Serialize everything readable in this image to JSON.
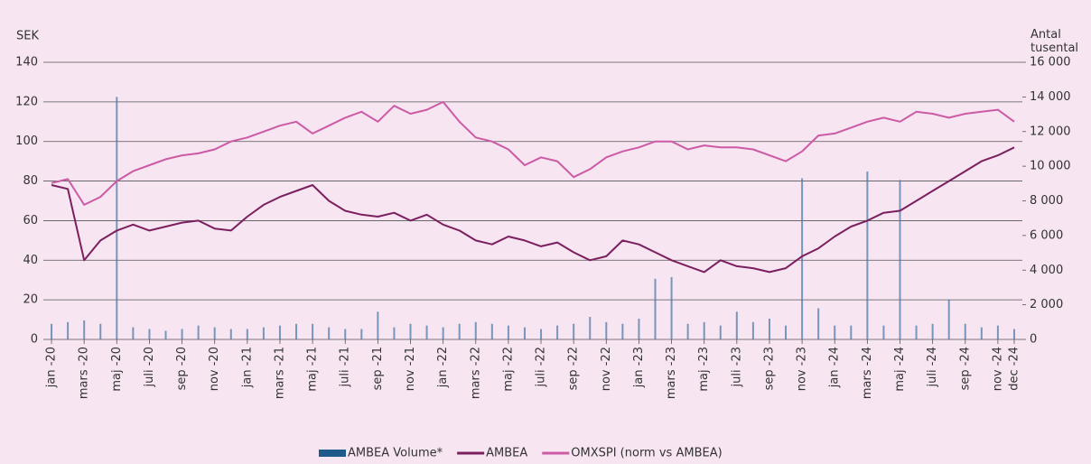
{
  "chart_data": {
    "type": "line",
    "y_label": "SEK",
    "y2_label": "Antal tusental",
    "categories": [
      "jan -20",
      null,
      "mars -20",
      null,
      "maj -20",
      null,
      "juli -20",
      null,
      "sep -20",
      null,
      "nov -20",
      null,
      "jan -21",
      null,
      "mars -21",
      null,
      "maj -21",
      null,
      "juli -21",
      null,
      "sep -21",
      null,
      "nov -21",
      null,
      "jan -22",
      null,
      "mars -22",
      null,
      "maj -22",
      null,
      "juli -22",
      null,
      "sep -22",
      null,
      "nov -22",
      null,
      "jan -23",
      null,
      "mars -23",
      null,
      "maj -23",
      null,
      "juli -23",
      null,
      "sep -23",
      null,
      "nov -23",
      null,
      "jan -24",
      null,
      "mars -24",
      null,
      "maj -24",
      null,
      "juli -24",
      null,
      "sep -24",
      null,
      "nov -24",
      "dec -24"
    ],
    "series": [
      {
        "name": "AMBEA Volume*",
        "type": "bar",
        "axis": "y2",
        "color": "#4f79a8",
        "values": [
          900,
          1000,
          1100,
          900,
          14000,
          700,
          600,
          500,
          600,
          800,
          700,
          600,
          600,
          700,
          800,
          900,
          900,
          700,
          600,
          600,
          1600,
          700,
          900,
          800,
          700,
          900,
          1000,
          900,
          800,
          700,
          600,
          800,
          900,
          1300,
          1000,
          900,
          1200,
          3500,
          3600,
          900,
          1000,
          800,
          1600,
          1000,
          1200,
          800,
          9300,
          1800,
          800,
          800,
          9700,
          800,
          9200,
          800,
          900,
          2300,
          900,
          700,
          800,
          600
        ]
      },
      {
        "name": "AMBEA",
        "type": "line",
        "color": "#7b1f5e",
        "values": [
          78,
          76,
          40,
          50,
          55,
          58,
          55,
          57,
          59,
          60,
          56,
          55,
          62,
          68,
          72,
          75,
          78,
          70,
          65,
          63,
          62,
          64,
          60,
          63,
          58,
          55,
          50,
          48,
          52,
          50,
          47,
          49,
          44,
          40,
          42,
          50,
          48,
          44,
          40,
          37,
          34,
          40,
          37,
          36,
          34,
          36,
          42,
          46,
          52,
          57,
          60,
          64,
          65,
          70,
          75,
          80,
          85,
          90,
          93,
          97
        ]
      },
      {
        "name": "OMXSPI (norm vs AMBEA)",
        "type": "line",
        "color": "#cc5aa4",
        "values": [
          79,
          81,
          68,
          72,
          80,
          85,
          88,
          91,
          93,
          94,
          96,
          100,
          102,
          105,
          108,
          110,
          104,
          108,
          112,
          115,
          110,
          118,
          114,
          116,
          120,
          110,
          102,
          100,
          96,
          88,
          92,
          90,
          82,
          86,
          92,
          95,
          97,
          100,
          100,
          96,
          98,
          97,
          97,
          96,
          93,
          90,
          95,
          103,
          104,
          107,
          110,
          112,
          110,
          115,
          114,
          112,
          114,
          115,
          116,
          110
        ]
      }
    ],
    "ylim": [
      0,
      140
    ],
    "yticks": [
      0,
      20,
      40,
      60,
      80,
      100,
      120,
      140
    ],
    "y2lim": [
      0,
      16000
    ],
    "y2ticks": [
      0,
      {
        "value": 2000,
        "label": "2 000"
      },
      {
        "value": 4000,
        "label": "4 000"
      },
      {
        "value": 6000,
        "label": "6 000"
      },
      {
        "value": 8000,
        "label": "8 000"
      },
      {
        "value": 10000,
        "label": "10 000"
      },
      {
        "value": 12000,
        "label": "12 000"
      },
      {
        "value": 14000,
        "label": "14 000"
      },
      {
        "value": 16000,
        "label": "16 000"
      }
    ],
    "grid": true,
    "legend": "bottom"
  }
}
